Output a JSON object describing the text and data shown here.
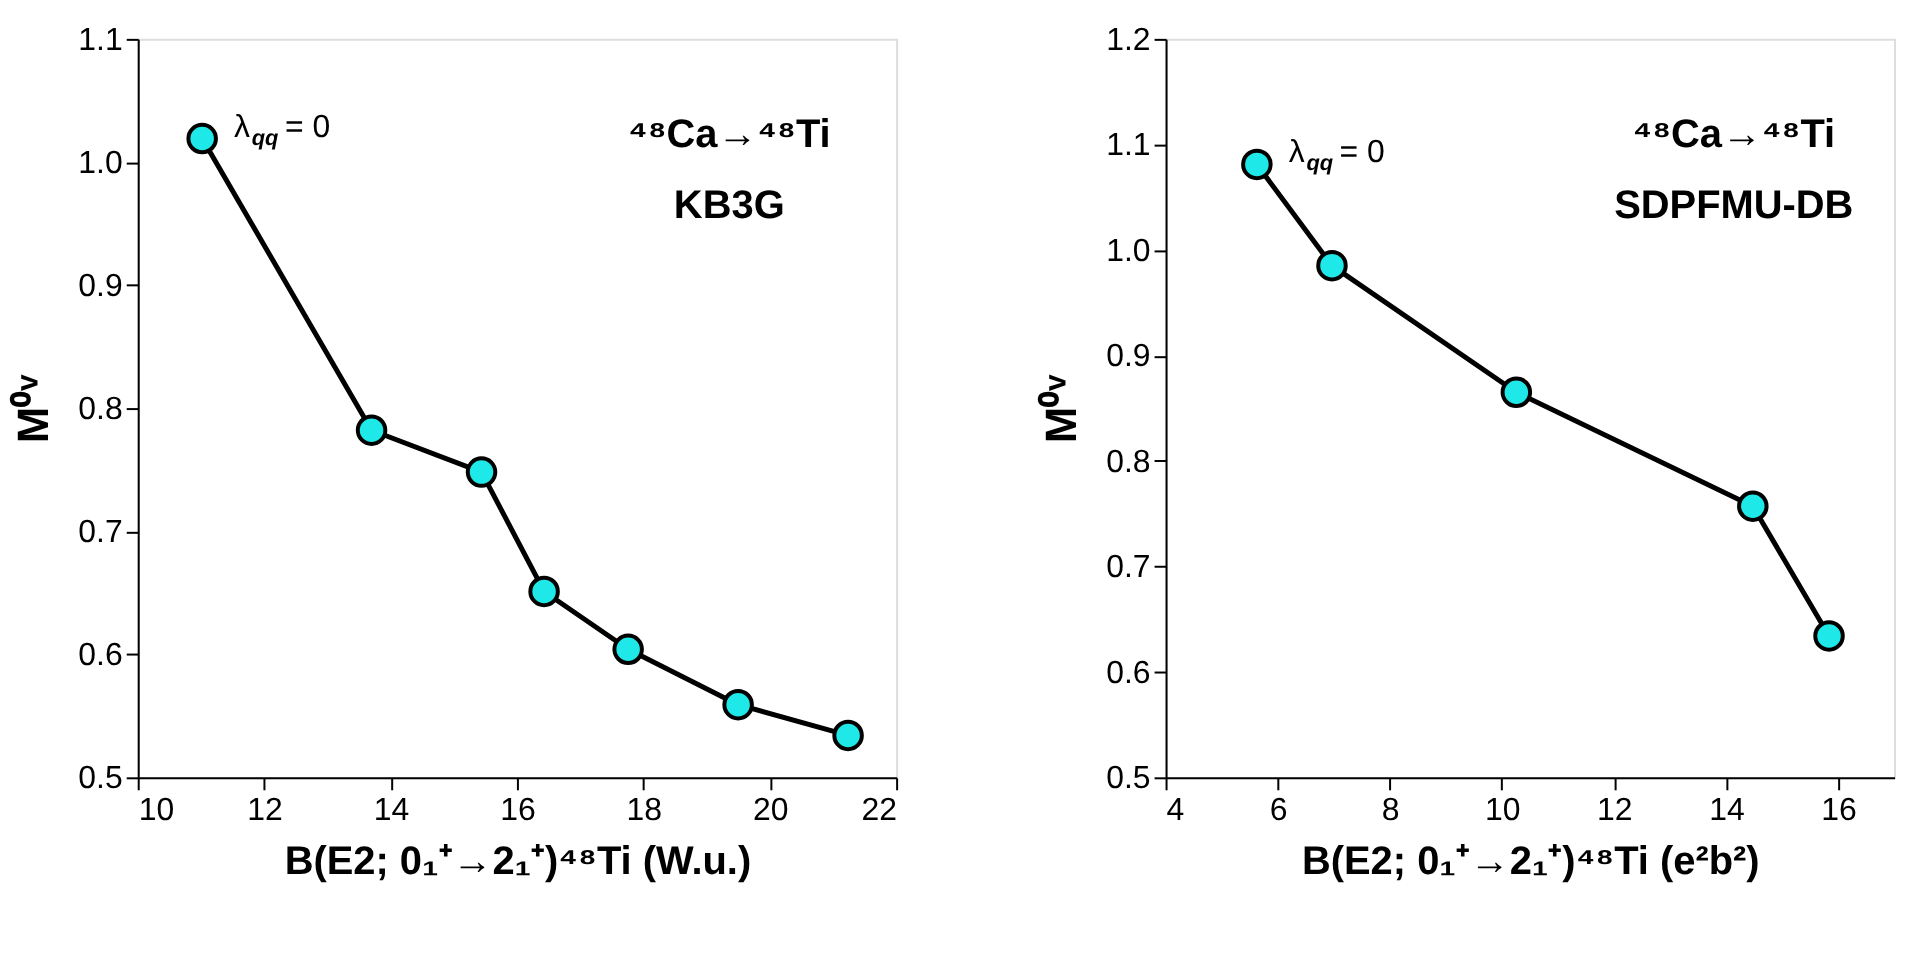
{
  "chart_data": [
    {
      "type": "line",
      "xlabel": "B(E2; 0₁⁺→2₁⁺)⁴⁸Ti (W.u.)",
      "ylabel": "M⁰ᵛ",
      "marker": "circle",
      "line_style": "solid",
      "grid": false,
      "x": [
        11.02,
        13.7,
        15.44,
        16.43,
        17.76,
        19.5,
        21.24
      ],
      "series": [
        {
          "color": "#1ee8e8",
          "values": [
            1.019,
            0.782,
            0.748,
            0.651,
            0.604,
            0.559,
            0.534
          ]
        }
      ],
      "xlim": [
        10,
        22
      ],
      "xticks": [
        10,
        12,
        14,
        16,
        18,
        20,
        22
      ],
      "ylim": [
        0.5,
        1.1
      ],
      "yticks": [
        0.5,
        0.6,
        0.7,
        0.8,
        0.9,
        {
          "value": 1,
          "label": "1.0"
        },
        1.1
      ],
      "annotations": [
        {
          "text": "λ$_{qq}$ = 0",
          "x": 11.02,
          "y": 1.019
        },
        "⁴⁸Ca→⁴⁸Ti",
        "KB3G"
      ]
    },
    {
      "type": "line",
      "xlabel": "B(E2; 0₁⁺→2₁⁺)⁴⁸Ti (e²b²)",
      "ylabel": "M⁰ᵛ",
      "marker": "circle",
      "line_style": "solid",
      "grid": false,
      "x": [
        5.63,
        6.97,
        10.26,
        14.48,
        15.84
      ],
      "series": [
        {
          "color": "#1ee8e8",
          "values": [
            1.081,
            0.985,
            0.865,
            0.757,
            0.634
          ]
        }
      ],
      "xlim": [
        4,
        17
      ],
      "xticks": [
        4,
        6,
        8,
        10,
        12,
        14,
        16
      ],
      "ylim": [
        0.5,
        1.2
      ],
      "yticks": [
        0.5,
        0.6,
        0.7,
        0.8,
        0.9,
        {
          "value": 1,
          "label": "1.0"
        },
        1.1,
        1.2
      ],
      "annotations": [
        {
          "text": "λ$_{qq}$ = 0",
          "x": 5.63,
          "y": 1.081
        },
        "⁴⁸Ca→⁴⁸Ti",
        "SDPFMU-DB"
      ]
    }
  ]
}
